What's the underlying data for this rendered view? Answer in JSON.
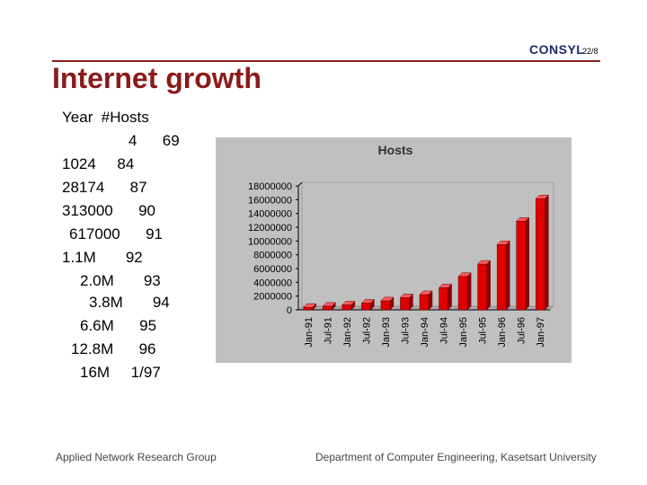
{
  "header": {
    "logo_text": "CONSYL",
    "slide_number": "22/8"
  },
  "title": "Internet growth",
  "text_lines": [
    "Year  #Hosts",
    "4      69",
    "1024     84",
    "28174      87",
    "313000      90",
    "617000      91",
    "1.1M       92",
    "2.0M       93",
    "3.8M       94",
    "6.6M      95",
    "12.8M      96",
    "16M     1/97"
  ],
  "footer": {
    "left": "Applied Network Research Group",
    "right": "Department of Computer Engineering, Kasetsart University"
  },
  "colors": {
    "title": "#8b1a1a",
    "chart_background": "#c0c0c0",
    "bar": "#e00000"
  },
  "chart_data": {
    "type": "bar",
    "title": "Hosts",
    "categories": [
      "Jan-91",
      "Jul-91",
      "Jan-92",
      "Jul-92",
      "Jan-93",
      "Jul-93",
      "Jan-94",
      "Jul-94",
      "Jan-95",
      "Jul-95",
      "Jan-96",
      "Jul-96",
      "Jan-97"
    ],
    "values": [
      376000,
      535000,
      727000,
      992000,
      1313000,
      1776000,
      2217000,
      3212000,
      4852000,
      6642000,
      9472000,
      12881000,
      16146000
    ],
    "ylim": [
      0,
      18000000
    ],
    "yticks": [
      "18000000",
      "16000000",
      "14000000",
      "12000000",
      "10000000",
      "8000000",
      "6000000",
      "4000000",
      "2000000",
      "0"
    ],
    "grid": false,
    "legend": "none",
    "style": "3d-bars"
  }
}
